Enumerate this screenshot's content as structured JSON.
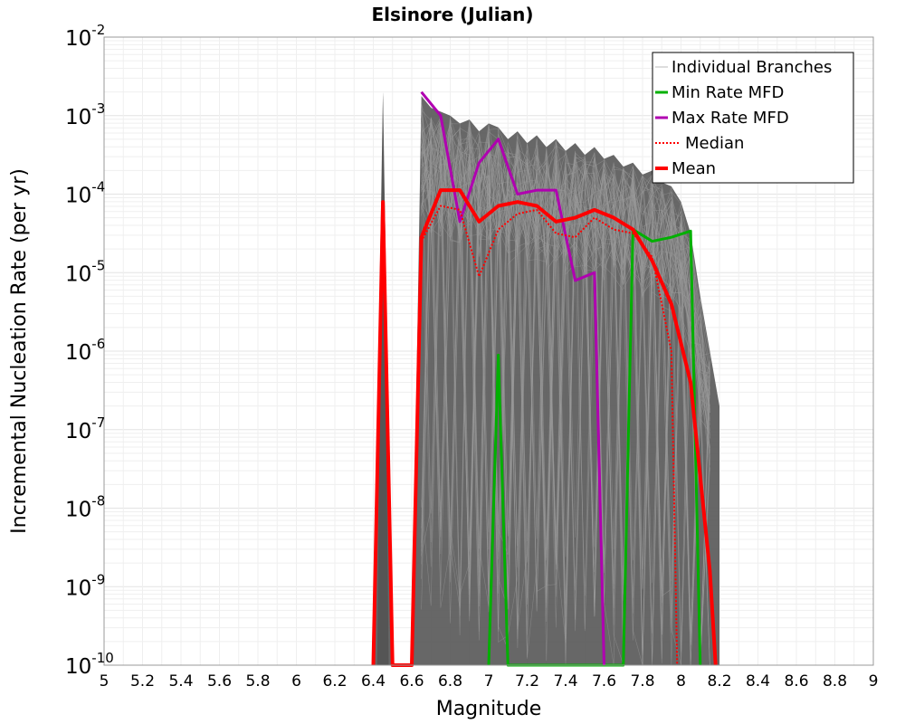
{
  "chart_data": {
    "type": "line",
    "title": "Elsinore (Julian)",
    "xlabel": "Magnitude",
    "ylabel": "Incremental Nucleation Rate (per yr)",
    "xlim": [
      5,
      9
    ],
    "ylim_log10": [
      -10,
      -2
    ],
    "y_scale": "log",
    "grid": true,
    "legend_position": "top-right",
    "x_ticks": [
      "5",
      "5.2",
      "5.4",
      "5.6",
      "5.8",
      "6",
      "6.2",
      "6.4",
      "6.6",
      "6.8",
      "7",
      "7.2",
      "7.4",
      "7.6",
      "7.8",
      "8",
      "8.2",
      "8.4",
      "8.6",
      "8.8",
      "9"
    ],
    "y_ticks": [
      {
        "base": "10",
        "exp": "-2"
      },
      {
        "base": "10",
        "exp": "-3"
      },
      {
        "base": "10",
        "exp": "-4"
      },
      {
        "base": "10",
        "exp": "-5"
      },
      {
        "base": "10",
        "exp": "-6"
      },
      {
        "base": "10",
        "exp": "-7"
      },
      {
        "base": "10",
        "exp": "-8"
      },
      {
        "base": "10",
        "exp": "-9"
      },
      {
        "base": "10",
        "exp": "-10"
      }
    ],
    "series": [
      {
        "name": "Individual Branches",
        "color": "#555555",
        "style": "thin-band",
        "upper": [
          [
            6.4,
            -10
          ],
          [
            6.45,
            -2.7
          ],
          [
            6.5,
            -10
          ],
          [
            6.6,
            -10
          ],
          [
            6.65,
            -2.75
          ],
          [
            6.7,
            -2.9
          ],
          [
            6.75,
            -2.95
          ],
          [
            6.8,
            -3.0
          ],
          [
            6.85,
            -3.1
          ],
          [
            6.9,
            -3.05
          ],
          [
            6.95,
            -3.2
          ],
          [
            7.0,
            -3.1
          ],
          [
            7.05,
            -3.15
          ],
          [
            7.1,
            -3.3
          ],
          [
            7.15,
            -3.2
          ],
          [
            7.2,
            -3.35
          ],
          [
            7.25,
            -3.25
          ],
          [
            7.3,
            -3.4
          ],
          [
            7.35,
            -3.3
          ],
          [
            7.4,
            -3.45
          ],
          [
            7.45,
            -3.35
          ],
          [
            7.5,
            -3.5
          ],
          [
            7.55,
            -3.4
          ],
          [
            7.6,
            -3.55
          ],
          [
            7.65,
            -3.5
          ],
          [
            7.7,
            -3.65
          ],
          [
            7.75,
            -3.6
          ],
          [
            7.8,
            -3.75
          ],
          [
            7.85,
            -3.7
          ],
          [
            7.9,
            -3.85
          ],
          [
            7.95,
            -3.9
          ],
          [
            8.0,
            -4.1
          ],
          [
            8.05,
            -4.5
          ],
          [
            8.1,
            -5.3
          ],
          [
            8.15,
            -6.0
          ],
          [
            8.2,
            -6.7
          ],
          [
            8.2,
            -10
          ]
        ],
        "lower": [
          [
            6.4,
            -10
          ],
          [
            8.2,
            -10
          ]
        ]
      },
      {
        "name": "Min Rate MFD",
        "color": "#00b000",
        "style": "solid",
        "points": [
          [
            7.0,
            -10
          ],
          [
            7.05,
            -6.05
          ],
          [
            7.1,
            -10
          ],
          [
            7.7,
            -10
          ],
          [
            7.75,
            -4.45
          ],
          [
            7.85,
            -4.6
          ],
          [
            7.95,
            -4.55
          ],
          [
            8.05,
            -4.47
          ],
          [
            8.1,
            -10
          ]
        ]
      },
      {
        "name": "Max Rate MFD",
        "color": "#b000b0",
        "style": "solid",
        "points": [
          [
            6.65,
            -2.7
          ],
          [
            6.75,
            -3.0
          ],
          [
            6.85,
            -4.35
          ],
          [
            6.95,
            -3.6
          ],
          [
            7.05,
            -3.3
          ],
          [
            7.15,
            -4.0
          ],
          [
            7.25,
            -3.95
          ],
          [
            7.35,
            -3.95
          ],
          [
            7.45,
            -5.1
          ],
          [
            7.55,
            -5.0
          ],
          [
            7.6,
            -10
          ]
        ]
      },
      {
        "name": "Median",
        "color": "#ff0000",
        "style": "dotted",
        "points": [
          [
            6.4,
            -10
          ],
          [
            6.45,
            -4.2
          ],
          [
            6.5,
            -10
          ],
          [
            6.6,
            -10
          ],
          [
            6.65,
            -4.6
          ],
          [
            6.75,
            -4.15
          ],
          [
            6.85,
            -4.2
          ],
          [
            6.95,
            -5.05
          ],
          [
            7.05,
            -4.45
          ],
          [
            7.15,
            -4.25
          ],
          [
            7.25,
            -4.2
          ],
          [
            7.35,
            -4.5
          ],
          [
            7.45,
            -4.55
          ],
          [
            7.55,
            -4.3
          ],
          [
            7.65,
            -4.45
          ],
          [
            7.75,
            -4.5
          ],
          [
            7.85,
            -4.8
          ],
          [
            7.95,
            -6.0
          ],
          [
            7.98,
            -10
          ]
        ]
      },
      {
        "name": "Mean",
        "color": "#ff0000",
        "style": "thick",
        "points": [
          [
            6.4,
            -10
          ],
          [
            6.45,
            -4.1
          ],
          [
            6.5,
            -10
          ],
          [
            6.6,
            -10
          ],
          [
            6.65,
            -4.55
          ],
          [
            6.75,
            -3.95
          ],
          [
            6.85,
            -3.95
          ],
          [
            6.95,
            -4.35
          ],
          [
            7.05,
            -4.15
          ],
          [
            7.15,
            -4.1
          ],
          [
            7.25,
            -4.15
          ],
          [
            7.35,
            -4.35
          ],
          [
            7.45,
            -4.3
          ],
          [
            7.55,
            -4.2
          ],
          [
            7.65,
            -4.3
          ],
          [
            7.75,
            -4.45
          ],
          [
            7.85,
            -4.85
          ],
          [
            7.95,
            -5.4
          ],
          [
            8.05,
            -6.4
          ],
          [
            8.15,
            -8.8
          ],
          [
            8.18,
            -10
          ]
        ]
      }
    ]
  }
}
